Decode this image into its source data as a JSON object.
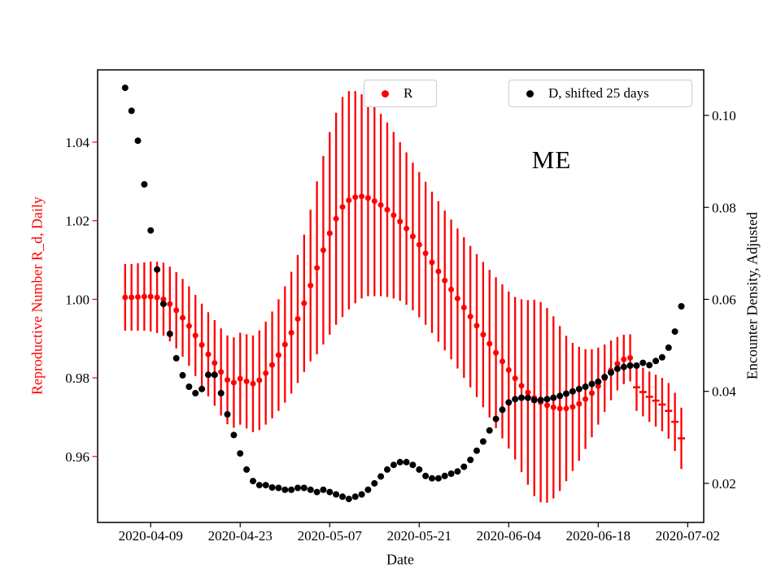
{
  "chart_data": {
    "type": "scatter",
    "annotation": "ME",
    "xlabel": "Date",
    "ylabel_left": "Reproductive Number R_d, Daily",
    "ylabel_right": "Encounter Density, Adjusted",
    "x_ticks": [
      "2020-04-09",
      "2020-04-23",
      "2020-05-07",
      "2020-05-21",
      "2020-06-04",
      "2020-06-18",
      "2020-07-02"
    ],
    "x_domain_days": [
      -4.3,
      90.5
    ],
    "left_axis": {
      "color": "#ff0000",
      "ticks": [
        0.96,
        0.98,
        1.0,
        1.02,
        1.04
      ],
      "tick_labels": [
        "0.96",
        "0.98",
        "1.00",
        "1.02",
        "1.04"
      ],
      "range": [
        0.9432,
        1.0584
      ]
    },
    "right_axis": {
      "color": "#000000",
      "ticks": [
        0.02,
        0.04,
        0.06,
        0.08,
        0.1
      ],
      "tick_labels": [
        "0.02",
        "0.04",
        "0.06",
        "0.08",
        "0.10"
      ],
      "range": [
        0.0115,
        0.1099
      ]
    },
    "legends": [
      {
        "label": "R",
        "color": "#ff0000"
      },
      {
        "label": "D, shifted 25 days",
        "color": "#000000"
      }
    ],
    "dates": [
      "2020-04-05",
      "2020-04-06",
      "2020-04-07",
      "2020-04-08",
      "2020-04-09",
      "2020-04-10",
      "2020-04-11",
      "2020-04-12",
      "2020-04-13",
      "2020-04-14",
      "2020-04-15",
      "2020-04-16",
      "2020-04-17",
      "2020-04-18",
      "2020-04-19",
      "2020-04-20",
      "2020-04-21",
      "2020-04-22",
      "2020-04-23",
      "2020-04-24",
      "2020-04-25",
      "2020-04-26",
      "2020-04-27",
      "2020-04-28",
      "2020-04-29",
      "2020-04-30",
      "2020-05-01",
      "2020-05-02",
      "2020-05-03",
      "2020-05-04",
      "2020-05-05",
      "2020-05-06",
      "2020-05-07",
      "2020-05-08",
      "2020-05-09",
      "2020-05-10",
      "2020-05-11",
      "2020-05-12",
      "2020-05-13",
      "2020-05-14",
      "2020-05-15",
      "2020-05-16",
      "2020-05-17",
      "2020-05-18",
      "2020-05-19",
      "2020-05-20",
      "2020-05-21",
      "2020-05-22",
      "2020-05-23",
      "2020-05-24",
      "2020-05-25",
      "2020-05-26",
      "2020-05-27",
      "2020-05-28",
      "2020-05-29",
      "2020-05-30",
      "2020-05-31",
      "2020-06-01",
      "2020-06-02",
      "2020-06-03",
      "2020-06-04",
      "2020-06-05",
      "2020-06-06",
      "2020-06-07",
      "2020-06-08",
      "2020-06-09",
      "2020-06-10",
      "2020-06-11",
      "2020-06-12",
      "2020-06-13",
      "2020-06-14",
      "2020-06-15",
      "2020-06-16",
      "2020-06-17",
      "2020-06-18",
      "2020-06-19",
      "2020-06-20",
      "2020-06-21",
      "2020-06-22",
      "2020-06-23",
      "2020-06-24",
      "2020-06-25",
      "2020-06-26",
      "2020-06-27",
      "2020-06-28",
      "2020-06-29",
      "2020-06-30",
      "2020-07-01"
    ],
    "series": [
      {
        "name": "R",
        "axis": "left",
        "color": "#ff0000",
        "marker": "o",
        "dash_from_index": 80,
        "values": [
          1.0005,
          1.0005,
          1.0006,
          1.0007,
          1.0007,
          1.0005,
          1.0,
          0.9988,
          0.9972,
          0.9953,
          0.9932,
          0.9908,
          0.9884,
          0.986,
          0.9838,
          0.9815,
          0.9795,
          0.9788,
          0.9798,
          0.9791,
          0.9785,
          0.9794,
          0.9812,
          0.9833,
          0.9858,
          0.9885,
          0.9915,
          0.995,
          0.999,
          1.0035,
          1.008,
          1.0125,
          1.0168,
          1.0205,
          1.0235,
          1.0252,
          1.026,
          1.0262,
          1.0258,
          1.025,
          1.024,
          1.0228,
          1.0214,
          1.0198,
          1.018,
          1.016,
          1.0139,
          1.0117,
          1.0094,
          1.0071,
          1.0048,
          1.0025,
          1.0002,
          0.9979,
          0.9956,
          0.9933,
          0.991,
          0.9887,
          0.9864,
          0.9842,
          0.982,
          0.9799,
          0.978,
          0.9763,
          0.9749,
          0.9738,
          0.973,
          0.9725,
          0.9722,
          0.9722,
          0.9726,
          0.9734,
          0.9746,
          0.9761,
          0.9779,
          0.9799,
          0.9819,
          0.9836,
          0.9847,
          0.9851,
          0.9776,
          0.9764,
          0.9752,
          0.9742,
          0.9732,
          0.9716,
          0.9688,
          0.9646
        ],
        "err": [
          0.0085,
          0.0085,
          0.0086,
          0.0087,
          0.0089,
          0.0091,
          0.0093,
          0.0095,
          0.0097,
          0.0099,
          0.0101,
          0.0103,
          0.0105,
          0.0107,
          0.0109,
          0.0111,
          0.0113,
          0.0115,
          0.0117,
          0.012,
          0.0123,
          0.0127,
          0.0131,
          0.0136,
          0.0142,
          0.0148,
          0.0155,
          0.0163,
          0.0175,
          0.0193,
          0.022,
          0.024,
          0.0258,
          0.027,
          0.028,
          0.0278,
          0.027,
          0.026,
          0.025,
          0.0242,
          0.0232,
          0.0222,
          0.0212,
          0.0202,
          0.0194,
          0.0188,
          0.0185,
          0.0182,
          0.018,
          0.0179,
          0.0178,
          0.0178,
          0.0178,
          0.0179,
          0.018,
          0.0182,
          0.0185,
          0.0188,
          0.0192,
          0.0196,
          0.02,
          0.0207,
          0.022,
          0.0235,
          0.025,
          0.0255,
          0.0248,
          0.0232,
          0.021,
          0.0185,
          0.0163,
          0.0145,
          0.0127,
          0.0112,
          0.0098,
          0.0086,
          0.0076,
          0.0068,
          0.0063,
          0.006,
          0.006,
          0.0062,
          0.0064,
          0.0066,
          0.0068,
          0.0071,
          0.0074,
          0.0078
        ]
      },
      {
        "name": "D, shifted 25 days",
        "axis": "right",
        "color": "#000000",
        "marker": "o",
        "values": [
          0.106,
          0.101,
          0.0945,
          0.085,
          0.075,
          0.0665,
          0.059,
          0.0525,
          0.0472,
          0.0435,
          0.041,
          0.0396,
          0.0405,
          0.0436,
          0.0436,
          0.0396,
          0.035,
          0.0305,
          0.0265,
          0.023,
          0.0205,
          0.0196,
          0.0196,
          0.0191,
          0.019,
          0.0186,
          0.0186,
          0.019,
          0.019,
          0.0186,
          0.0181,
          0.0186,
          0.0181,
          0.0176,
          0.0171,
          0.0166,
          0.0171,
          0.0176,
          0.0186,
          0.02,
          0.0215,
          0.023,
          0.024,
          0.0246,
          0.0246,
          0.024,
          0.023,
          0.0216,
          0.0211,
          0.0211,
          0.0216,
          0.0221,
          0.0226,
          0.0236,
          0.0251,
          0.0271,
          0.0291,
          0.0315,
          0.034,
          0.036,
          0.0376,
          0.0383,
          0.0386,
          0.0386,
          0.0381,
          0.0381,
          0.0383,
          0.0386,
          0.039,
          0.0395,
          0.04,
          0.0405,
          0.041,
          0.0416,
          0.0421,
          0.0431,
          0.0441,
          0.0449,
          0.0453,
          0.0456,
          0.0456,
          0.0462,
          0.0457,
          0.0466,
          0.0474,
          0.0495,
          0.053,
          0.0585
        ]
      }
    ]
  }
}
